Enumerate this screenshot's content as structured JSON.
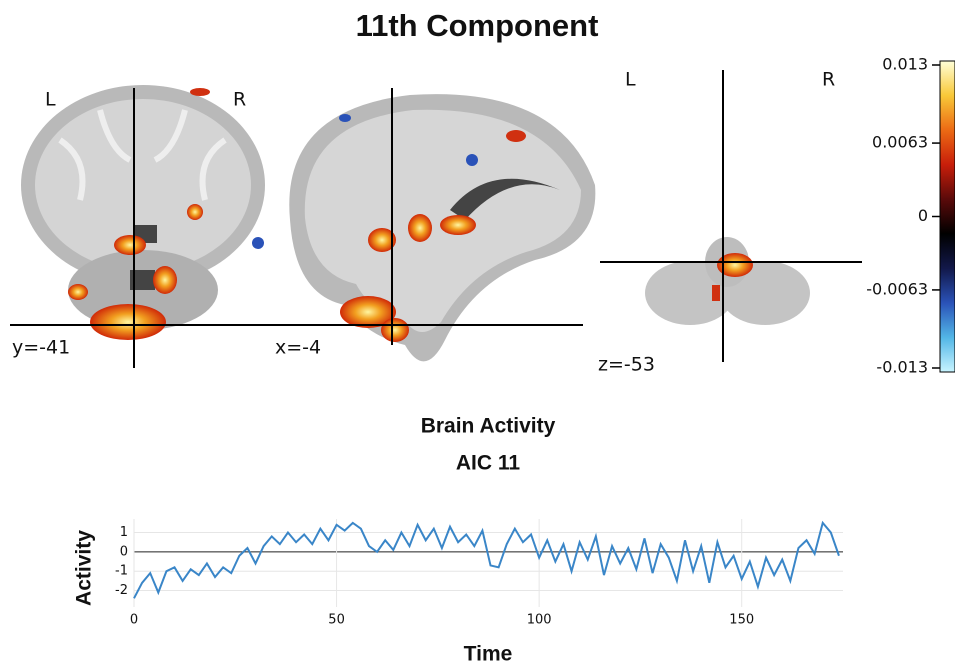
{
  "title": "11th Component",
  "brain_views": [
    {
      "left": "L",
      "right": "R",
      "coordinate": "y=-41"
    },
    {
      "coordinate": "x=-4"
    },
    {
      "left": "L",
      "right": "R",
      "coordinate": "z=-53"
    }
  ],
  "chart_data": [
    {
      "type": "colorbar",
      "ylim": [
        -0.013,
        0.013
      ],
      "yticks": [
        0.013,
        0.0063,
        0,
        -0.0063,
        -0.013
      ],
      "colors": [
        "#c8f4ff",
        "#52b6e6",
        "#2a52b8",
        "#12184a",
        "#000000",
        "#5a0a0a",
        "#c81e0a",
        "#ec6a14",
        "#f8c838",
        "#ffffd8"
      ]
    },
    {
      "type": "line",
      "title": "Brain Activity",
      "subtitle": "AIC 11",
      "x_label": "Time",
      "y_label": "Activity",
      "x": [
        0,
        2,
        4,
        6,
        8,
        10,
        12,
        14,
        16,
        18,
        20,
        22,
        24,
        26,
        28,
        30,
        32,
        34,
        36,
        38,
        40,
        42,
        44,
        46,
        48,
        50,
        52,
        54,
        56,
        58,
        60,
        62,
        64,
        66,
        68,
        70,
        72,
        74,
        76,
        78,
        80,
        82,
        84,
        86,
        88,
        90,
        92,
        94,
        96,
        98,
        100,
        102,
        104,
        106,
        108,
        110,
        112,
        114,
        116,
        118,
        120,
        122,
        124,
        126,
        128,
        130,
        132,
        134,
        136,
        138,
        140,
        142,
        144,
        146,
        148,
        150,
        152,
        154,
        156,
        158,
        160,
        162,
        164,
        166,
        168,
        170,
        172,
        174
      ],
      "series": [
        {
          "color": "#3a86c8",
          "values": [
            -2.4,
            -1.6,
            -1.1,
            -2.1,
            -1.0,
            -0.8,
            -1.5,
            -0.9,
            -1.2,
            -0.6,
            -1.3,
            -0.8,
            -1.1,
            -0.2,
            0.2,
            -0.6,
            0.3,
            0.8,
            0.4,
            1.0,
            0.5,
            0.9,
            0.4,
            1.2,
            0.6,
            1.4,
            1.1,
            1.5,
            1.2,
            0.3,
            0.0,
            0.6,
            0.1,
            1.0,
            0.3,
            1.4,
            0.6,
            1.2,
            0.2,
            1.3,
            0.5,
            0.9,
            0.3,
            1.1,
            -0.7,
            -0.8,
            0.4,
            1.2,
            0.5,
            0.9,
            -0.3,
            0.6,
            -0.5,
            0.4,
            -1.0,
            0.5,
            -0.4,
            0.8,
            -1.2,
            0.3,
            -0.6,
            0.2,
            -0.9,
            0.7,
            -1.1,
            0.4,
            -0.3,
            -1.5,
            0.6,
            -1.0,
            0.3,
            -1.6,
            0.5,
            -0.8,
            -0.2,
            -1.4,
            -0.5,
            -1.8,
            -0.3,
            -1.2,
            -0.4,
            -1.5,
            0.2,
            0.6,
            -0.1,
            1.5,
            1.0,
            -0.2
          ]
        }
      ],
      "xlim": [
        0,
        175
      ],
      "ylim": [
        -2.85,
        1.7
      ],
      "xticks": [
        0,
        50,
        100,
        150
      ],
      "yticks": [
        1,
        0,
        -1,
        -2
      ],
      "grid": true
    }
  ]
}
